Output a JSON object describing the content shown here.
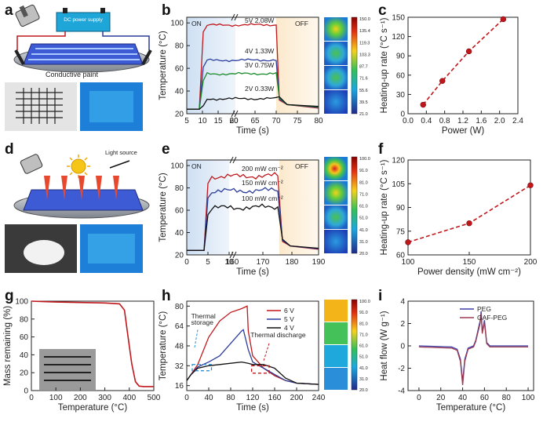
{
  "figure": {
    "panel_letters": [
      "a",
      "b",
      "c",
      "d",
      "e",
      "f",
      "g",
      "h",
      "i"
    ],
    "a": {
      "box_label": "DC power supply",
      "caption": "Conductive paint"
    },
    "d": {
      "caption": "Light source"
    },
    "colorbar_b": [
      "150.0",
      "135.4",
      "119.3",
      "103.3",
      "87.7",
      "71.6",
      "55.6",
      "39.5",
      "21.0"
    ],
    "colorbar_e": [
      "100.0",
      "91.0",
      "81.0",
      "71.0",
      "61.0",
      "51.0",
      "41.0",
      "31.0",
      "20.0"
    ],
    "colorbar_h": [
      "100.0",
      "91.0",
      "81.0",
      "71.0",
      "61.0",
      "51.0",
      "41.0",
      "31.0",
      "20.0"
    ]
  },
  "chart_data": [
    {
      "panel": "b",
      "type": "line",
      "xlabel": "Time (s)",
      "ylabel": "Temperature (°C)",
      "x_ticks_left": [
        "5",
        "10",
        "15",
        "20"
      ],
      "x_ticks_right": [
        "60",
        "65",
        "70",
        "75",
        "80"
      ],
      "x_break_label": "60",
      "y_ticks": [
        "20",
        "40",
        "60",
        "80",
        "100"
      ],
      "ylim": [
        20,
        105
      ],
      "on_label": "ON",
      "off_label": "OFF",
      "series": [
        {
          "name": "5V 2.08W",
          "color": "#c0171c",
          "plateau": 98
        },
        {
          "name": "4V 1.33W",
          "color": "#2b3d9c",
          "plateau": 67
        },
        {
          "name": "3V 0.75W",
          "color": "#1a8a2c",
          "plateau": 55
        },
        {
          "name": "2V 0.33W",
          "color": "#111111",
          "plateau": 33
        }
      ]
    },
    {
      "panel": "c",
      "type": "scatter",
      "title": "",
      "xlabel": "Power (W)",
      "ylabel": "Heating-up rate (°C s⁻¹)",
      "x": [
        0.33,
        0.75,
        1.33,
        2.08
      ],
      "values": [
        14,
        51,
        97,
        147
      ],
      "xlim": [
        0.0,
        2.4
      ],
      "ylim": [
        0,
        150
      ],
      "x_ticks": [
        "0.0",
        "0.4",
        "0.8",
        "1.2",
        "1.6",
        "2.0",
        "2.4"
      ],
      "y_ticks": [
        "0",
        "30",
        "60",
        "90",
        "120",
        "150"
      ],
      "color": "#c0171c"
    },
    {
      "panel": "e",
      "type": "line",
      "xlabel": "Time (s)",
      "ylabel": "Temperature (°C)",
      "x_ticks_left": [
        "0",
        "5",
        "10"
      ],
      "x_ticks_right": [
        "160",
        "170",
        "180",
        "190"
      ],
      "x_break_label": "160",
      "y_ticks": [
        "20",
        "40",
        "60",
        "80",
        "100"
      ],
      "ylim": [
        20,
        105
      ],
      "on_label": "ON",
      "off_label": "OFF",
      "series": [
        {
          "name": "200 mW cm⁻²",
          "color": "#c0171c",
          "plateau": 90
        },
        {
          "name": "150 mW cm⁻²",
          "color": "#2b3d9c",
          "plateau": 77
        },
        {
          "name": "100 mW cm⁻²",
          "color": "#111111",
          "plateau": 62
        }
      ]
    },
    {
      "panel": "f",
      "type": "scatter",
      "xlabel": "Power density (mW cm⁻²)",
      "ylabel": "Heating-up rate (°C s⁻¹)",
      "x": [
        100,
        150,
        200
      ],
      "values": [
        68,
        80,
        104
      ],
      "xlim": [
        100,
        200
      ],
      "ylim": [
        60,
        120
      ],
      "x_ticks": [
        "100",
        "150",
        "200"
      ],
      "y_ticks": [
        "60",
        "75",
        "90",
        "105",
        "120"
      ],
      "color": "#c0171c"
    },
    {
      "panel": "g",
      "type": "line",
      "xlabel": "Temperature (°C)",
      "ylabel": "Mass remaining (%)",
      "x": [
        0,
        50,
        100,
        200,
        300,
        360,
        380,
        395,
        410,
        425,
        440,
        460,
        500
      ],
      "values": [
        100,
        99.5,
        99,
        98.5,
        98,
        97,
        90,
        60,
        30,
        10,
        5,
        4.5,
        4.5
      ],
      "xlim": [
        0,
        500
      ],
      "ylim": [
        0,
        100
      ],
      "x_ticks": [
        "0",
        "100",
        "200",
        "300",
        "400",
        "500"
      ],
      "y_ticks": [
        "0",
        "20",
        "40",
        "60",
        "80",
        "100"
      ],
      "color": "#c0171c"
    },
    {
      "panel": "h",
      "type": "line",
      "xlabel": "Time (s)",
      "ylabel": "Temperature (°C)",
      "xlim": [
        0,
        240
      ],
      "ylim": [
        12,
        84
      ],
      "x_ticks": [
        "0",
        "40",
        "80",
        "120",
        "160",
        "200",
        "240"
      ],
      "y_ticks": [
        "16",
        "32",
        "48",
        "64",
        "80"
      ],
      "annotations": [
        "Thermal storage",
        "Thermal discharge"
      ],
      "series": [
        {
          "name": "6 V",
          "color": "#c0171c",
          "x": [
            0,
            8,
            20,
            40,
            60,
            80,
            100,
            110,
            112,
            120,
            140,
            160,
            180,
            200,
            240
          ],
          "values": [
            20,
            25,
            33,
            55,
            68,
            75,
            78,
            80,
            60,
            40,
            30,
            24,
            20,
            18,
            17
          ]
        },
        {
          "name": "5 V",
          "color": "#2b3d9c",
          "x": [
            0,
            8,
            20,
            40,
            60,
            80,
            100,
            103,
            112,
            120,
            140,
            160,
            180,
            200,
            240
          ],
          "values": [
            20,
            25,
            31,
            35,
            40,
            50,
            60,
            61,
            45,
            35,
            30,
            25,
            20,
            18,
            17
          ]
        },
        {
          "name": "4 V",
          "color": "#111111",
          "x": [
            0,
            8,
            20,
            40,
            60,
            80,
            100,
            112,
            120,
            140,
            160,
            180,
            200,
            240
          ],
          "values": [
            20,
            25,
            30,
            32,
            33,
            34,
            35,
            34,
            33,
            33,
            30,
            22,
            18,
            17
          ]
        }
      ]
    },
    {
      "panel": "i",
      "type": "line",
      "xlabel": "Temperature (°C)",
      "ylabel": "Heat flow (W g⁻¹)",
      "xlim": [
        -10,
        105
      ],
      "ylim": [
        -4,
        4
      ],
      "x_ticks": [
        "0",
        "20",
        "40",
        "60",
        "80",
        "100"
      ],
      "y_ticks": [
        "-4",
        "-2",
        "0",
        "2",
        "4"
      ],
      "series": [
        {
          "name": "PEG",
          "color": "#3b3fa8",
          "x": [
            0,
            30,
            35,
            38,
            40,
            42,
            45,
            50,
            52,
            55,
            56,
            57,
            58,
            60,
            62,
            65,
            70,
            100
          ],
          "values": [
            0,
            -0.1,
            -0.3,
            -1.2,
            -3.2,
            -1.2,
            -0.2,
            0,
            0.5,
            1.8,
            2.2,
            3.1,
            1.2,
            2.3,
            0.3,
            0,
            0,
            0
          ]
        },
        {
          "name": "GAF-PEG",
          "color": "#9b3b52",
          "x": [
            0,
            30,
            35,
            38,
            40,
            42,
            45,
            50,
            52,
            55,
            56,
            57,
            58,
            60,
            62,
            65,
            70,
            100
          ],
          "values": [
            -0.1,
            -0.2,
            -0.4,
            -1.4,
            -3.5,
            -1.4,
            -0.3,
            -0.1,
            0.4,
            1.6,
            2.0,
            2.9,
            1.1,
            2.1,
            0.2,
            -0.1,
            -0.1,
            -0.1
          ]
        }
      ]
    }
  ]
}
